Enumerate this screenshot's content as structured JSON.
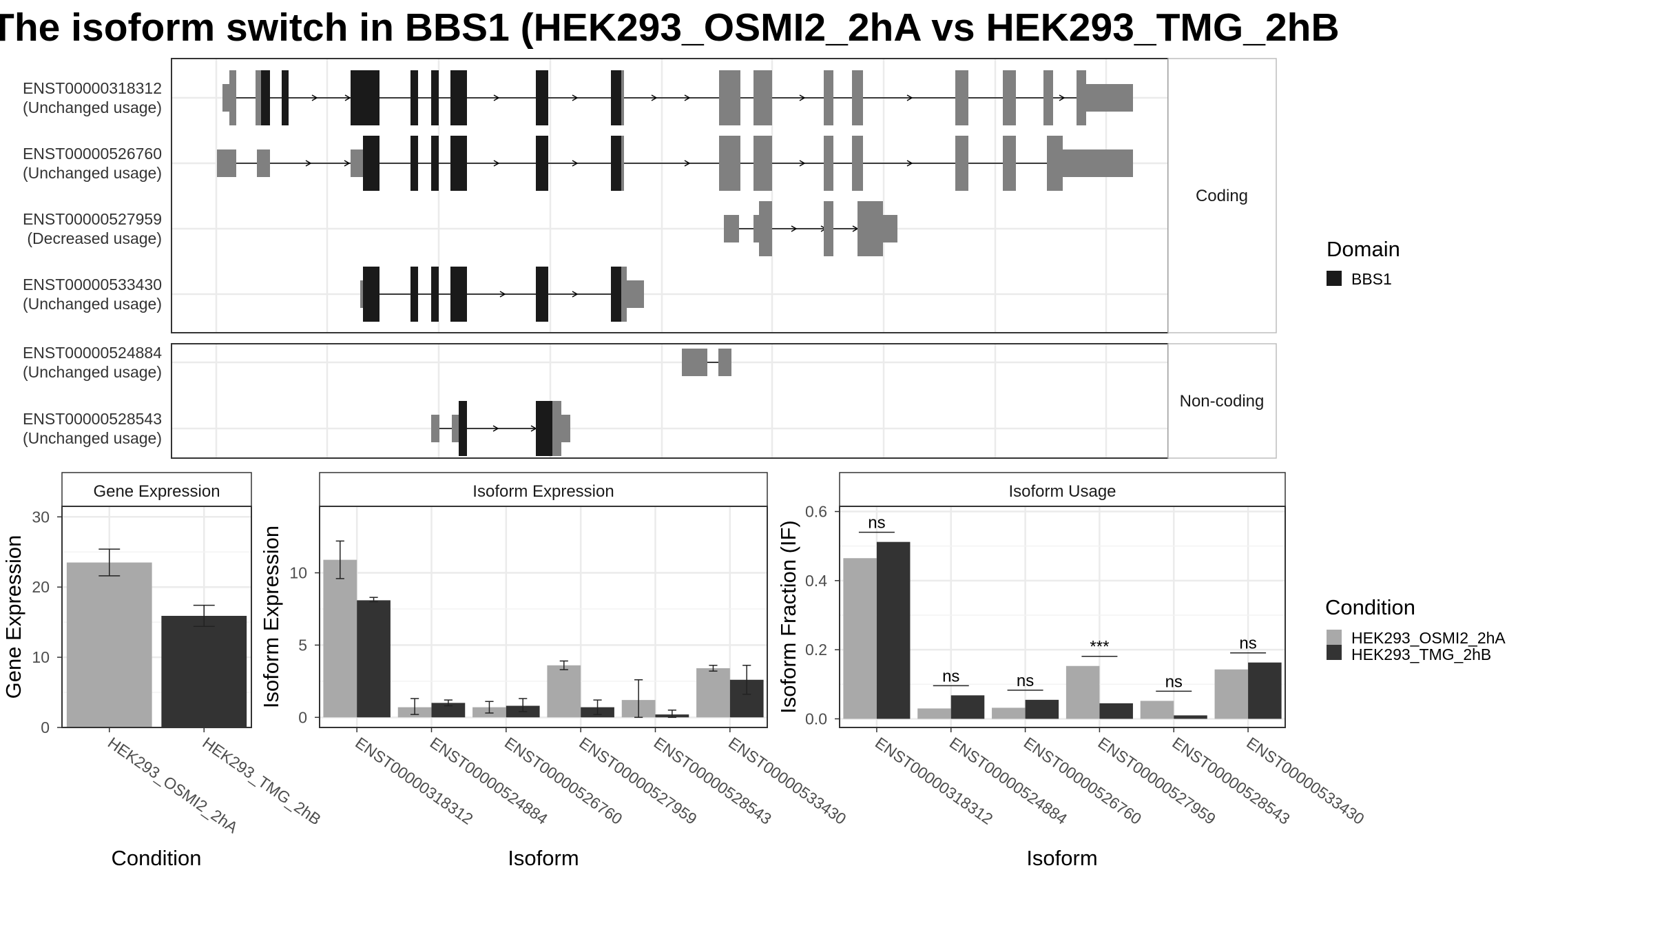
{
  "title": "The isoform switch in BBS1 (HEK293_OSMI2_2hA vs HEK293_TMG_2hB",
  "colors": {
    "domain": "#1a1a1a",
    "exon": "#808080",
    "condition_a": "#a9a9a9",
    "condition_b": "#333333",
    "strip_bg": "#ffffff",
    "grid": "#ebebeb"
  },
  "structure": {
    "coding_strip": "Coding",
    "noncoding_strip": "Non-coding",
    "coding_isoforms": [
      {
        "id": "ENST00000318312",
        "usage": "(Unchanged usage)"
      },
      {
        "id": "ENST00000526760",
        "usage": "(Unchanged usage)"
      },
      {
        "id": "ENST00000527959",
        "usage": "(Decreased usage)"
      },
      {
        "id": "ENST00000533430",
        "usage": "(Unchanged usage)"
      }
    ],
    "noncoding_isoforms": [
      {
        "id": "ENST00000524884",
        "usage": "(Unchanged usage)"
      },
      {
        "id": "ENST00000528543",
        "usage": "(Unchanged usage)"
      }
    ]
  },
  "legend_domain": {
    "title": "Domain",
    "items": [
      {
        "label": "BBS1",
        "color": "#1a1a1a"
      }
    ]
  },
  "legend_condition": {
    "title": "Condition",
    "items": [
      {
        "label": "HEK293_OSMI2_2hA",
        "color": "#a9a9a9"
      },
      {
        "label": "HEK293_TMG_2hB",
        "color": "#333333"
      }
    ]
  },
  "chart_data": [
    {
      "type": "bar",
      "title": "Gene Expression",
      "xlabel": "Condition",
      "ylabel": "Gene Expression",
      "categories": [
        "HEK293_OSMI2_2hA",
        "HEK293_TMG_2hB"
      ],
      "values": [
        23.5,
        15.9
      ],
      "errors": [
        [
          21.6,
          25.4
        ],
        [
          14.4,
          17.4
        ]
      ],
      "ylim": [
        0,
        31.5
      ],
      "yticks": [
        0,
        10,
        20,
        30
      ]
    },
    {
      "type": "bar",
      "title": "Isoform Expression",
      "xlabel": "Isoform",
      "ylabel": "Isoform Expression",
      "categories": [
        "ENST00000318312",
        "ENST00000524884",
        "ENST00000526760",
        "ENST00000527959",
        "ENST00000528543",
        "ENST00000533430"
      ],
      "series": [
        {
          "name": "HEK293_OSMI2_2hA",
          "values": [
            10.9,
            0.7,
            0.7,
            3.6,
            1.2,
            3.4
          ],
          "errors": [
            [
              9.6,
              12.2
            ],
            [
              0.2,
              1.3
            ],
            [
              0.3,
              1.1
            ],
            [
              3.3,
              3.9
            ],
            [
              0.0,
              2.6
            ],
            [
              3.2,
              3.6
            ]
          ]
        },
        {
          "name": "HEK293_TMG_2hB",
          "values": [
            8.1,
            1.0,
            0.8,
            0.7,
            0.2,
            2.6
          ],
          "errors": [
            [
              8.0,
              8.3
            ],
            [
              0.8,
              1.2
            ],
            [
              0.4,
              1.3
            ],
            [
              0.2,
              1.2
            ],
            [
              0.0,
              0.5
            ],
            [
              1.6,
              3.6
            ]
          ]
        }
      ],
      "ylim": [
        -0.7,
        14.6
      ],
      "yticks": [
        0,
        5,
        10
      ]
    },
    {
      "type": "bar",
      "title": "Isoform Usage",
      "xlabel": "Isoform",
      "ylabel": "Isoform Fraction (IF)",
      "categories": [
        "ENST00000318312",
        "ENST00000524884",
        "ENST00000526760",
        "ENST00000527959",
        "ENST00000528543",
        "ENST00000533430"
      ],
      "series": [
        {
          "name": "HEK293_OSMI2_2hA",
          "values": [
            0.465,
            0.03,
            0.032,
            0.153,
            0.052,
            0.143
          ]
        },
        {
          "name": "HEK293_TMG_2hB",
          "values": [
            0.512,
            0.068,
            0.055,
            0.045,
            0.01,
            0.163
          ]
        }
      ],
      "significance": [
        "ns",
        "ns",
        "ns",
        "***",
        "ns",
        "ns"
      ],
      "ylim": [
        -0.025,
        0.615
      ],
      "yticks": [
        0.0,
        0.2,
        0.4,
        0.6
      ]
    }
  ]
}
